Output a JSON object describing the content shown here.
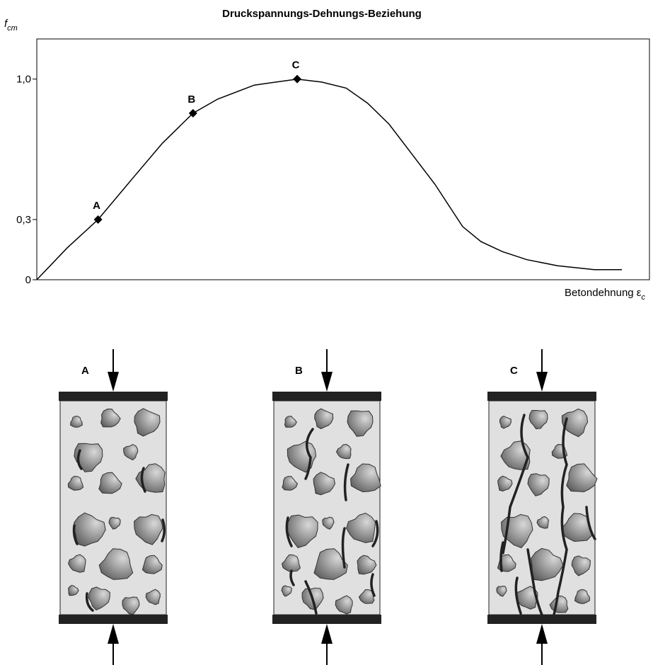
{
  "chart_data": {
    "type": "line",
    "title": "Druckspannungs-Dehnungs-Beziehung",
    "y_label": "f",
    "y_label_sub": "cm",
    "x_label": "Betondehnung ε",
    "x_label_sub": "c",
    "color": "#000000",
    "x": [
      0,
      5,
      10,
      15.5,
      20.5,
      25.5,
      29.5,
      35.5,
      42.5,
      46.5,
      50.5,
      54,
      57.5,
      61,
      65,
      69.5,
      72.5,
      76,
      80,
      85,
      91,
      95.5
    ],
    "values": [
      0,
      0.16,
      0.3,
      0.5,
      0.68,
      0.83,
      0.9,
      0.97,
      1.0,
      0.985,
      0.955,
      0.88,
      0.775,
      0.635,
      0.475,
      0.265,
      0.19,
      0.14,
      0.1,
      0.07,
      0.05,
      0.05
    ],
    "points": [
      {
        "name": "A",
        "x": 10,
        "y": 0.3
      },
      {
        "name": "B",
        "x": 25.5,
        "y": 0.83
      },
      {
        "name": "C",
        "x": 42.5,
        "y": 1.0
      }
    ],
    "xlim": [
      0,
      100
    ],
    "ylim": [
      0,
      1.2
    ],
    "yticks": [
      0,
      {
        "value": 0.3,
        "label": "0,3"
      },
      {
        "value": 1,
        "label": "1,0"
      }
    ]
  },
  "specimens": [
    {
      "label": "A"
    },
    {
      "label": "B"
    },
    {
      "label": "C"
    }
  ]
}
